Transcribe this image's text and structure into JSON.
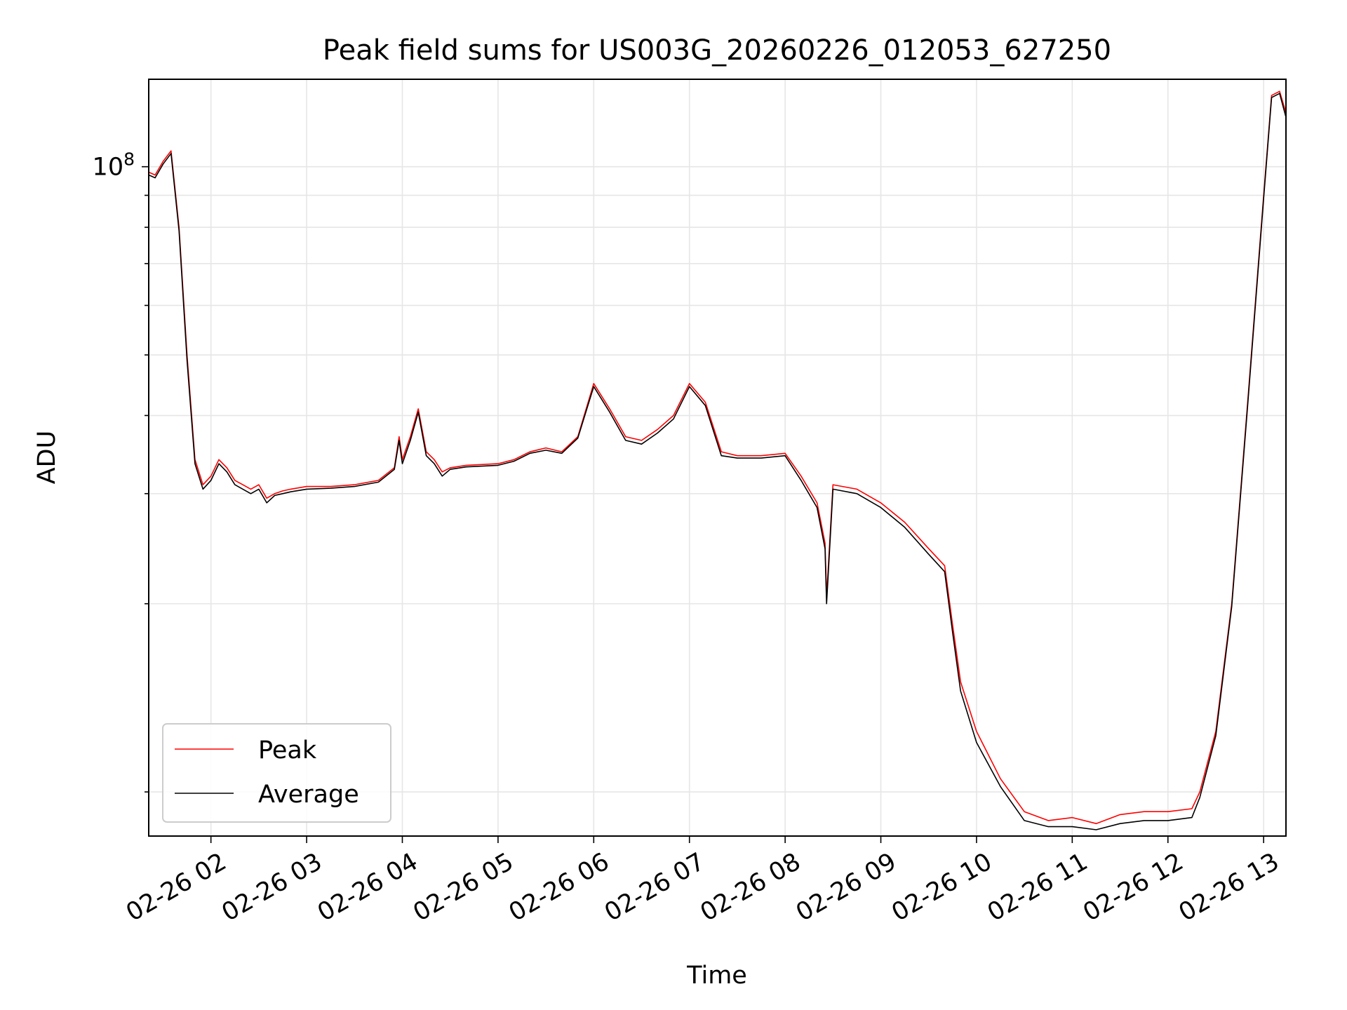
{
  "chart_data": {
    "type": "line",
    "title": "Peak field sums for US003G_20260226_012053_627250",
    "xlabel": "Time",
    "ylabel": "ADU",
    "y_scale": "log",
    "grid": true,
    "legend_position": "lower-left",
    "x_tick_labels": [
      "02-26 02",
      "02-26 03",
      "02-26 04",
      "02-26 05",
      "02-26 06",
      "02-26 07",
      "02-26 08",
      "02-26 09",
      "02-26 10",
      "02-26 11",
      "02-26 12",
      "02-26 13"
    ],
    "x_ticks": [
      "2026-02-26 02:00",
      "2026-02-26 03:00",
      "2026-02-26 04:00",
      "2026-02-26 05:00",
      "2026-02-26 06:00",
      "2026-02-26 07:00",
      "2026-02-26 08:00",
      "2026-02-26 09:00",
      "2026-02-26 10:00",
      "2026-02-26 11:00",
      "2026-02-26 12:00",
      "2026-02-26 13:00"
    ],
    "xlim": [
      "2026-02-26 01:21",
      "2026-02-26 13:14"
    ],
    "ylim": [
      8500000,
      138000000
    ],
    "y_major_tick": {
      "value": 100000000,
      "base": "10",
      "exponent": "8"
    },
    "y_minor_ticks": [
      10000000,
      20000000,
      30000000,
      40000000,
      50000000,
      60000000,
      70000000,
      80000000,
      90000000
    ],
    "x": [
      "2026-02-26 01:21",
      "2026-02-26 01:25",
      "2026-02-26 01:30",
      "2026-02-26 01:35",
      "2026-02-26 01:40",
      "2026-02-26 01:45",
      "2026-02-26 01:50",
      "2026-02-26 01:55",
      "2026-02-26 02:00",
      "2026-02-26 02:05",
      "2026-02-26 02:10",
      "2026-02-26 02:15",
      "2026-02-26 02:20",
      "2026-02-26 02:25",
      "2026-02-26 02:30",
      "2026-02-26 02:35",
      "2026-02-26 02:40",
      "2026-02-26 02:45",
      "2026-02-26 02:50",
      "2026-02-26 03:00",
      "2026-02-26 03:15",
      "2026-02-26 03:30",
      "2026-02-26 03:45",
      "2026-02-26 03:55",
      "2026-02-26 03:58",
      "2026-02-26 04:00",
      "2026-02-26 04:05",
      "2026-02-26 04:10",
      "2026-02-26 04:15",
      "2026-02-26 04:20",
      "2026-02-26 04:25",
      "2026-02-26 04:30",
      "2026-02-26 04:40",
      "2026-02-26 05:00",
      "2026-02-26 05:10",
      "2026-02-26 05:20",
      "2026-02-26 05:30",
      "2026-02-26 05:40",
      "2026-02-26 05:50",
      "2026-02-26 06:00",
      "2026-02-26 06:10",
      "2026-02-26 06:20",
      "2026-02-26 06:30",
      "2026-02-26 06:40",
      "2026-02-26 06:50",
      "2026-02-26 07:00",
      "2026-02-26 07:10",
      "2026-02-26 07:20",
      "2026-02-26 07:30",
      "2026-02-26 07:45",
      "2026-02-26 08:00",
      "2026-02-26 08:10",
      "2026-02-26 08:20",
      "2026-02-26 08:25",
      "2026-02-26 08:26",
      "2026-02-26 08:30",
      "2026-02-26 08:45",
      "2026-02-26 09:00",
      "2026-02-26 09:15",
      "2026-02-26 09:30",
      "2026-02-26 09:40",
      "2026-02-26 09:45",
      "2026-02-26 09:50",
      "2026-02-26 10:00",
      "2026-02-26 10:15",
      "2026-02-26 10:30",
      "2026-02-26 10:45",
      "2026-02-26 11:00",
      "2026-02-26 11:15",
      "2026-02-26 11:30",
      "2026-02-26 11:45",
      "2026-02-26 12:00",
      "2026-02-26 12:15",
      "2026-02-26 12:20",
      "2026-02-26 12:30",
      "2026-02-26 12:40",
      "2026-02-26 12:50",
      "2026-02-26 13:00",
      "2026-02-26 13:05",
      "2026-02-26 13:10",
      "2026-02-26 13:14"
    ],
    "series": [
      {
        "name": "Peak",
        "color": "#ff0000",
        "values": [
          98000000,
          97000000,
          102000000,
          106000000,
          80000000,
          50000000,
          34000000,
          31000000,
          32000000,
          34000000,
          33000000,
          31500000,
          31000000,
          30500000,
          31000000,
          29500000,
          30000000,
          30300000,
          30500000,
          30800000,
          30800000,
          31000000,
          31500000,
          33000000,
          37000000,
          34000000,
          37000000,
          41000000,
          35000000,
          34000000,
          32500000,
          33000000,
          33300000,
          33500000,
          34000000,
          35000000,
          35500000,
          35000000,
          37000000,
          45000000,
          41000000,
          37000000,
          36500000,
          38000000,
          40000000,
          45000000,
          42000000,
          35000000,
          34500000,
          34500000,
          34800000,
          32000000,
          29000000,
          25000000,
          20500000,
          31000000,
          30500000,
          29000000,
          27000000,
          24500000,
          23000000,
          18500000,
          15000000,
          12500000,
          10500000,
          9300000,
          9000000,
          9100000,
          8900000,
          9200000,
          9300000,
          9300000,
          9400000,
          10000000,
          12500000,
          20000000,
          42000000,
          90000000,
          130000000,
          132000000,
          122000000
        ]
      },
      {
        "name": "Average",
        "color": "#000000",
        "values": [
          97000000,
          96000000,
          101000000,
          105000000,
          79000000,
          49000000,
          33500000,
          30500000,
          31500000,
          33500000,
          32500000,
          31000000,
          30500000,
          30000000,
          30500000,
          29000000,
          29800000,
          30000000,
          30200000,
          30500000,
          30600000,
          30800000,
          31300000,
          32800000,
          36500000,
          33500000,
          36500000,
          40500000,
          34500000,
          33500000,
          32000000,
          32800000,
          33100000,
          33300000,
          33800000,
          34800000,
          35200000,
          34800000,
          36800000,
          44500000,
          40500000,
          36500000,
          36000000,
          37500000,
          39500000,
          44500000,
          41500000,
          34500000,
          34200000,
          34200000,
          34500000,
          31500000,
          28500000,
          24500000,
          20000000,
          30500000,
          30000000,
          28500000,
          26500000,
          24000000,
          22500000,
          18000000,
          14500000,
          12000000,
          10200000,
          9000000,
          8800000,
          8800000,
          8700000,
          8900000,
          9000000,
          9000000,
          9100000,
          9800000,
          12300000,
          19800000,
          41500000,
          89000000,
          129000000,
          131000000,
          120000000
        ]
      }
    ]
  }
}
